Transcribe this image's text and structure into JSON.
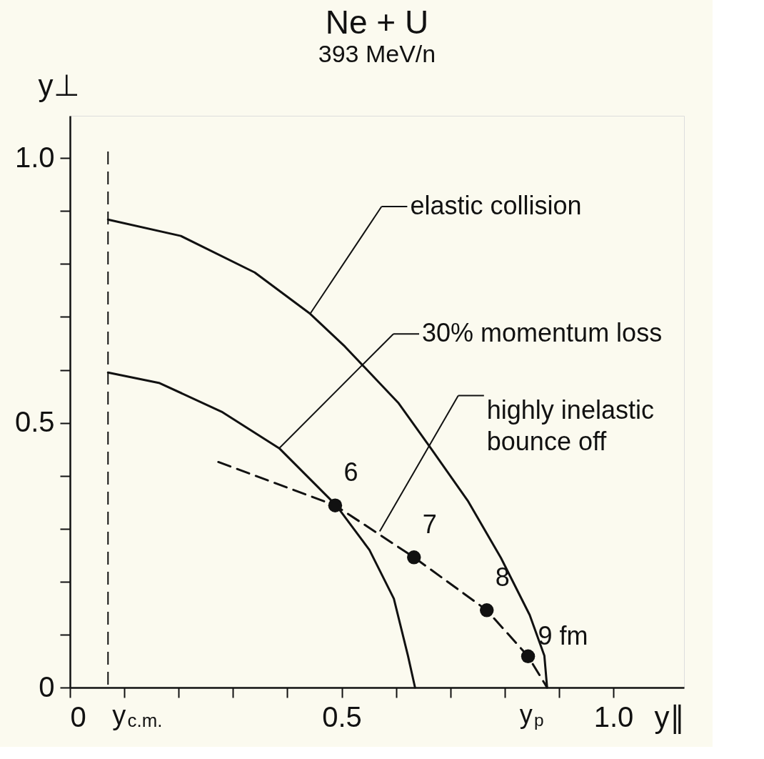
{
  "chart_data": {
    "type": "line",
    "title": "Ne + U",
    "subtitle": "393 MeV/n",
    "xlabel": "y∥",
    "ylabel": "y⊥",
    "xlim": [
      0,
      1.13
    ],
    "ylim": [
      0,
      1.08
    ],
    "xticks": [
      0,
      {
        "value": 0.1,
        "label": null
      },
      {
        "value": 0.2,
        "label": null
      },
      {
        "value": 0.3,
        "label": null
      },
      {
        "value": 0.4,
        "label": null
      },
      0.5,
      {
        "value": 0.6,
        "label": null
      },
      {
        "value": 0.7,
        "label": null
      },
      {
        "value": 0.8,
        "label": null
      },
      {
        "value": 0.9,
        "label": null
      },
      {
        "value": 1.0,
        "label": "1.0"
      }
    ],
    "yticks": [
      0,
      {
        "value": 0.1,
        "label": null
      },
      {
        "value": 0.2,
        "label": null
      },
      {
        "value": 0.3,
        "label": null
      },
      {
        "value": 0.4,
        "label": null
      },
      0.5,
      {
        "value": 0.6,
        "label": null
      },
      {
        "value": 0.7,
        "label": null
      },
      {
        "value": 0.8,
        "label": null
      },
      {
        "value": 0.9,
        "label": null
      },
      {
        "value": 1.0,
        "label": "1.0"
      }
    ],
    "grid": false,
    "series": [
      {
        "color": "#111111",
        "line_style": "solid",
        "x": [
          0.07,
          0.204,
          0.34,
          0.442,
          0.506,
          0.604,
          0.664,
          0.732,
          0.793,
          0.846,
          0.873,
          0.878
        ],
        "values": [
          0.884,
          0.853,
          0.784,
          0.706,
          0.644,
          0.538,
          0.452,
          0.353,
          0.245,
          0.137,
          0.06,
          0
        ]
      },
      {
        "color": "#111111",
        "line_style": "solid",
        "x": [
          0.07,
          0.165,
          0.279,
          0.385,
          0.49,
          0.551,
          0.596,
          0.622,
          0.635
        ],
        "values": [
          0.595,
          0.575,
          0.521,
          0.452,
          0.344,
          0.26,
          0.168,
          0.06,
          0
        ]
      },
      {
        "color": "#111111",
        "line_style": "dashed",
        "x": [
          0.273,
          0.488,
          0.633,
          0.767,
          0.843,
          0.878
        ],
        "values": [
          0.426,
          0.344,
          0.246,
          0.146,
          0.059,
          0
        ]
      },
      {
        "type": "scatter",
        "color": "#111111",
        "marker": "circle",
        "x": [
          0.488,
          0.633,
          0.767,
          0.843
        ],
        "values": [
          0.344,
          0.246,
          0.146,
          0.059
        ]
      }
    ],
    "ref_lines": [
      {
        "axis": "x",
        "value": 0.07,
        "label": "y$_{c.m.}$",
        "line_style": "dashed",
        "color": "#111111"
      }
    ],
    "annotations": [
      {
        "text": "elastic collision",
        "x": 0.442,
        "y": 0.706
      },
      {
        "text": "30% momentum loss",
        "x": 0.385,
        "y": 0.452
      },
      {
        "text": "highly inelastic\nbounce off",
        "x": 0.57,
        "y": 0.295
      },
      {
        "text": "y$_{p}$",
        "x": 0.88,
        "y": 0
      },
      {
        "text": "6",
        "x": 0.488,
        "y": 0.344
      },
      {
        "text": "7",
        "x": 0.633,
        "y": 0.246
      },
      {
        "text": "8",
        "x": 0.767,
        "y": 0.146
      },
      {
        "text": "9 fm",
        "x": 0.843,
        "y": 0.059
      }
    ]
  }
}
